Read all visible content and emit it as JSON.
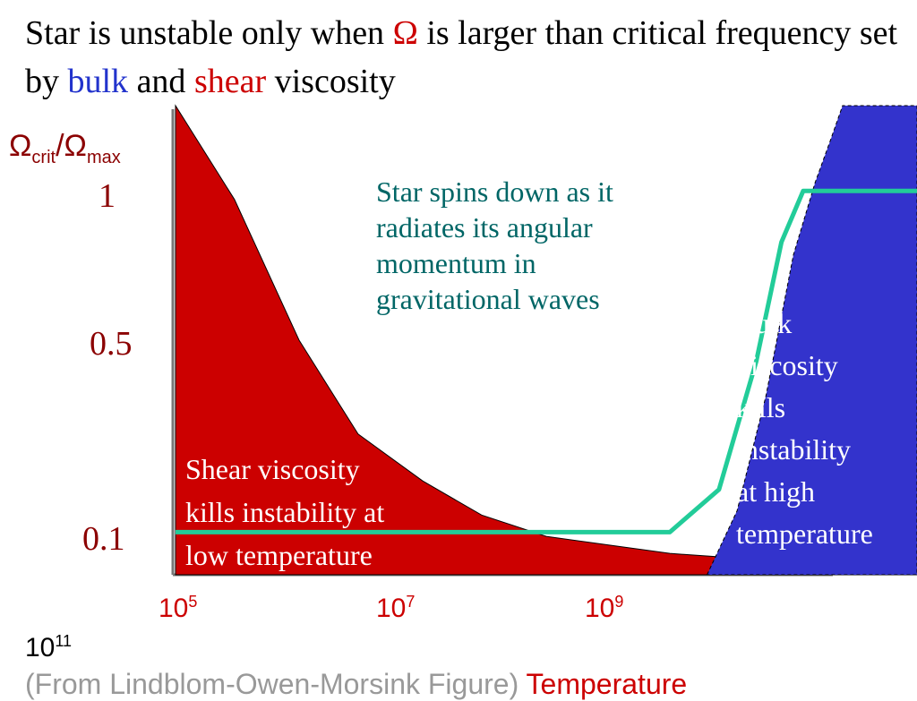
{
  "title": {
    "part1": "Star is unstable only when ",
    "omega": "Ω",
    "part2": " is larger than critical frequency set by ",
    "bulk": "bulk",
    "part3": " and ",
    "shear": "shear",
    "part4": " viscosity"
  },
  "colors": {
    "shear_region": "#cc0000",
    "bulk_region": "#3333cc",
    "gw_curve": "#22cc99",
    "tick_text": "#8b0000",
    "gw_text": "#006666"
  },
  "chart_data": {
    "type": "area",
    "ylabel": {
      "main": "Ω",
      "sub1": "crit",
      "slash": "/Ω",
      "sub2": "max"
    },
    "xlabel": "Temperature",
    "x_scale": "log",
    "y_ticks": [
      "1",
      "0.5",
      "0.1"
    ],
    "x_ticks": [
      {
        "base": "10",
        "exp": "5"
      },
      {
        "base": "10",
        "exp": "7"
      },
      {
        "base": "10",
        "exp": "9"
      }
    ],
    "x_tick_extra": {
      "base": "10",
      "exp": "11"
    },
    "xlim": [
      100000,
      100000000000
    ],
    "ylim": [
      0,
      1.1
    ],
    "series": [
      {
        "name": "shear",
        "x": [
          100000,
          300000,
          1000000,
          3000000,
          10000000,
          30000000,
          100000000,
          1000000000,
          10000000000,
          100000000000
        ],
        "y": [
          1.1,
          0.88,
          0.55,
          0.33,
          0.22,
          0.14,
          0.09,
          0.05,
          0.03,
          0.015
        ]
      },
      {
        "name": "bulk",
        "x": [
          2000000000,
          3500000000,
          6000000000,
          10000000000,
          15000000000,
          20000000000,
          25000000000,
          100000000000
        ],
        "y": [
          0.0,
          0.15,
          0.42,
          0.75,
          0.92,
          1.02,
          1.1,
          1.1
        ]
      },
      {
        "name": "gw",
        "x": [
          100000,
          1000000000,
          2500000000,
          5000000000,
          8000000000,
          12000000000,
          100000000000
        ],
        "y": [
          0.1,
          0.1,
          0.2,
          0.5,
          0.78,
          0.9,
          0.9
        ]
      }
    ],
    "annotations": {
      "gw": [
        "Star spins down as it",
        "radiates its angular",
        "momentum in",
        "gravitational waves"
      ],
      "bulk": [
        "Bulk",
        "viscosity",
        "kills",
        "instability",
        "at high",
        "temperature"
      ],
      "shear": [
        "Shear viscosity",
        "kills instability at",
        "low temperature"
      ]
    }
  },
  "footer": {
    "source": "(From Lindblom-Owen-Morsink Figure)  ",
    "temperature": "Temperature"
  }
}
